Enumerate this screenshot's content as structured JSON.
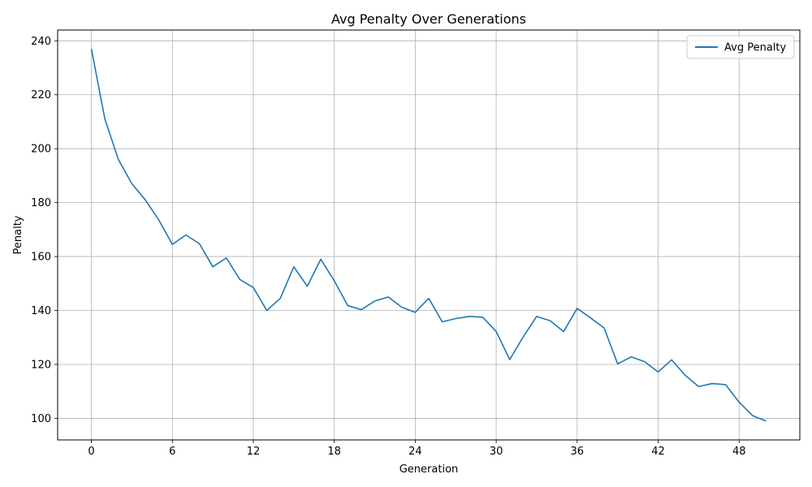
{
  "chart_data": {
    "type": "line",
    "title": "Avg Penalty Over Generations",
    "xlabel": "Generation",
    "ylabel": "Penalty",
    "xlim": [
      -2.5,
      52.5
    ],
    "ylim": [
      92,
      244
    ],
    "xticks": [
      0,
      6,
      12,
      18,
      24,
      30,
      36,
      42,
      48
    ],
    "yticks": [
      100,
      120,
      140,
      160,
      180,
      200,
      220,
      240
    ],
    "grid": true,
    "legend_position": "top-right",
    "series": [
      {
        "name": "Avg Penalty",
        "color": "#1f77b4",
        "x": [
          0,
          1,
          2,
          3,
          4,
          5,
          6,
          7,
          8,
          9,
          10,
          11,
          12,
          13,
          14,
          15,
          16,
          17,
          18,
          19,
          20,
          21,
          22,
          23,
          24,
          25,
          26,
          27,
          28,
          29,
          30,
          31,
          32,
          33,
          34,
          35,
          36,
          37,
          38,
          39,
          40,
          41,
          42,
          43,
          44,
          45,
          46,
          47,
          48,
          49,
          50
        ],
        "y": [
          237,
          211,
          196,
          187,
          181,
          173.5,
          164.5,
          168,
          164.8,
          156.2,
          159.5,
          151.5,
          148.5,
          140,
          144.5,
          156.2,
          149,
          159,
          151,
          141.8,
          140.3,
          143.5,
          145,
          141.2,
          139.3,
          144.5,
          135.8,
          137,
          137.8,
          137.5,
          132.2,
          121.8,
          130.2,
          137.8,
          136.2,
          132.2,
          140.8,
          137.2,
          133.5,
          120.2,
          122.8,
          121,
          117.2,
          121.7,
          116,
          111.8,
          112.9,
          112.5,
          106,
          101,
          99
        ]
      }
    ]
  }
}
